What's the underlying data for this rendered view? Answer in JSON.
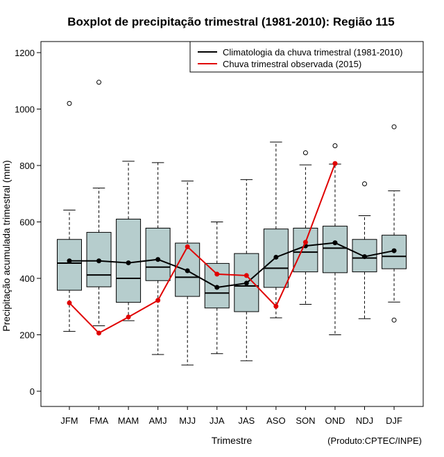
{
  "chart_data": {
    "type": "boxplot",
    "title": "Boxplot de precipitação trimestral (1981-2010): Região 115",
    "xlabel": "Trimestre",
    "ylabel": "Precipitação acumulada trimestral (mm)",
    "ylim": [
      -50,
      1250
    ],
    "yticks": [
      0,
      200,
      400,
      600,
      800,
      1000,
      1200
    ],
    "categories": [
      "JFM",
      "FMA",
      "MAM",
      "AMJ",
      "MJJ",
      "JJA",
      "JAS",
      "ASO",
      "SON",
      "OND",
      "NDJ",
      "DJF"
    ],
    "boxes": [
      {
        "whislo": 212,
        "q1": 358,
        "med": 454,
        "q3": 538,
        "whishi": 642,
        "fliers": [
          1020
        ]
      },
      {
        "whislo": 232,
        "q1": 370,
        "med": 412,
        "q3": 563,
        "whishi": 720,
        "fliers": [
          1095
        ]
      },
      {
        "whislo": 250,
        "q1": 315,
        "med": 400,
        "q3": 610,
        "whishi": 815,
        "fliers": []
      },
      {
        "whislo": 130,
        "q1": 392,
        "med": 440,
        "q3": 578,
        "whishi": 810,
        "fliers": []
      },
      {
        "whislo": 93,
        "q1": 336,
        "med": 404,
        "q3": 525,
        "whishi": 745,
        "fliers": []
      },
      {
        "whislo": 133,
        "q1": 295,
        "med": 348,
        "q3": 453,
        "whishi": 600,
        "fliers": []
      },
      {
        "whislo": 108,
        "q1": 282,
        "med": 373,
        "q3": 488,
        "whishi": 750,
        "fliers": []
      },
      {
        "whislo": 260,
        "q1": 368,
        "med": 436,
        "q3": 575,
        "whishi": 883,
        "fliers": []
      },
      {
        "whislo": 308,
        "q1": 423,
        "med": 493,
        "q3": 578,
        "whishi": 802,
        "fliers": [
          845
        ]
      },
      {
        "whislo": 200,
        "q1": 420,
        "med": 507,
        "q3": 585,
        "whishi": 805,
        "fliers": [
          870
        ]
      },
      {
        "whislo": 257,
        "q1": 423,
        "med": 472,
        "q3": 538,
        "whishi": 622,
        "fliers": [
          735
        ]
      },
      {
        "whislo": 316,
        "q1": 434,
        "med": 478,
        "q3": 553,
        "whishi": 710,
        "fliers": [
          252,
          937
        ]
      }
    ],
    "series": [
      {
        "name": "Climatologia da chuva trimestral (1981-2010)",
        "color": "#000000",
        "values": [
          462,
          462,
          455,
          467,
          427,
          368,
          383,
          475,
          515,
          526,
          477,
          498
        ]
      },
      {
        "name": "Chuva trimestral observada (2015)",
        "color": "#e00000",
        "values": [
          313,
          206,
          263,
          322,
          512,
          415,
          410,
          301,
          528,
          807,
          null,
          null
        ]
      }
    ],
    "legend_position": "top-right",
    "box_color": "#b6cdcd",
    "credit": "(Produto:CPTEC/INPE)"
  }
}
